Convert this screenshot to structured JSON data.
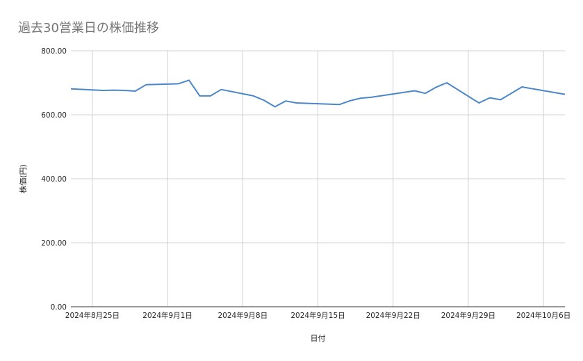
{
  "chart_data": {
    "type": "line",
    "title": "過去30営業日の株価推移",
    "xlabel": "日付",
    "ylabel": "株価(円)",
    "ylim": [
      0,
      800
    ],
    "y_ticks": [
      "0.00",
      "200.00",
      "400.00",
      "600.00",
      "800.00"
    ],
    "x_tick_labels": [
      "2024年8月25日",
      "2024年9月1日",
      "2024年9月8日",
      "2024年9月15日",
      "2024年9月22日",
      "2024年9月29日",
      "2024年10月6日"
    ],
    "x_ticks": [
      "2024-08-25",
      "2024-09-01",
      "2024-09-08",
      "2024-09-15",
      "2024-09-22",
      "2024-09-29",
      "2024-10-06"
    ],
    "xlim": [
      "2024-08-23",
      "2024-10-08"
    ],
    "grid": true,
    "line_color": "#4a86c8",
    "series": [
      {
        "x": [
          "2024-08-23",
          "2024-08-26",
          "2024-08-27",
          "2024-08-28",
          "2024-08-29",
          "2024-08-30",
          "2024-09-02",
          "2024-09-03",
          "2024-09-04",
          "2024-09-05",
          "2024-09-06",
          "2024-09-09",
          "2024-09-10",
          "2024-09-11",
          "2024-09-12",
          "2024-09-13",
          "2024-09-17",
          "2024-09-18",
          "2024-09-19",
          "2024-09-20",
          "2024-09-24",
          "2024-09-25",
          "2024-09-26",
          "2024-09-27",
          "2024-09-30",
          "2024-10-01",
          "2024-10-02",
          "2024-10-04",
          "2024-10-08"
        ],
        "y": [
          681,
          676,
          677,
          676,
          674,
          694,
          697,
          708,
          659,
          659,
          679,
          659,
          645,
          625,
          643,
          637,
          632,
          644,
          652,
          655,
          675,
          667,
          686,
          700,
          637,
          653,
          647,
          687,
          664
        ]
      }
    ]
  }
}
